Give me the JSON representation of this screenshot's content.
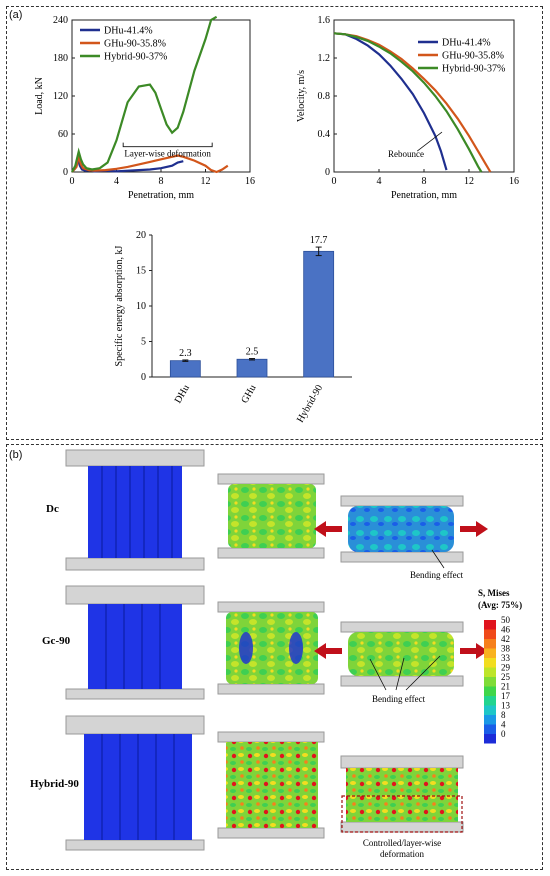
{
  "panel_a_label": "(a)",
  "panel_b_label": "(b)",
  "chart_data": [
    {
      "type": "line",
      "xlabel": "Penetration, mm",
      "ylabel": "Load, kN",
      "xlim": [
        0,
        16
      ],
      "ylim": [
        0,
        240
      ],
      "xticks": [
        "0",
        "4",
        "8",
        "12",
        "16"
      ],
      "yticks": [
        "0",
        "60",
        "120",
        "180",
        "240"
      ],
      "legend": "top-left",
      "series": [
        {
          "name": "DHu-41.4%",
          "color": "#1f2f8f",
          "x": [
            0,
            0.3,
            0.5,
            0.7,
            0.9,
            1.2,
            1.6,
            2.0,
            3.0,
            4.0,
            5.0,
            6.0,
            7.0,
            8.0,
            9.0,
            9.5,
            10.0
          ],
          "y": [
            0,
            6,
            22,
            10,
            4,
            2,
            3,
            1,
            2,
            1,
            2,
            3,
            4,
            6,
            10,
            15,
            17
          ]
        },
        {
          "name": "GHu-90-35.8%",
          "color": "#d2561b",
          "x": [
            0,
            0.4,
            0.6,
            0.8,
            1.0,
            1.5,
            2.0,
            3.0,
            4.0,
            5.0,
            6.0,
            7.0,
            8.0,
            9.0,
            9.5,
            10.0,
            11.0,
            12.0,
            12.5,
            13.0,
            13.5,
            14.0
          ],
          "y": [
            0,
            8,
            25,
            12,
            6,
            3,
            2,
            3,
            5,
            8,
            12,
            16,
            20,
            24,
            26,
            24,
            18,
            10,
            3,
            0,
            4,
            10
          ]
        },
        {
          "name": "Hybrid-90-37%",
          "color": "#3c8a26",
          "x": [
            0,
            0.3,
            0.6,
            0.8,
            1.0,
            1.3,
            1.8,
            2.5,
            3.2,
            4.0,
            5.0,
            6.0,
            7.0,
            7.5,
            8.0,
            8.5,
            9.0,
            9.5,
            10.0,
            11.0,
            12.0,
            12.5,
            13.0
          ],
          "y": [
            0,
            10,
            32,
            20,
            12,
            6,
            4,
            6,
            15,
            50,
            110,
            135,
            138,
            125,
            100,
            75,
            62,
            70,
            95,
            160,
            210,
            240,
            245
          ]
        }
      ],
      "annotations": [
        "Layer-wise deformation"
      ]
    },
    {
      "type": "line",
      "xlabel": "Penetration, mm",
      "ylabel": "Velocity, m/s",
      "xlim": [
        0,
        16
      ],
      "ylim": [
        0,
        1.6
      ],
      "xticks": [
        "0",
        "4",
        "8",
        "12",
        "16"
      ],
      "yticks": [
        "0",
        "0.4",
        "0.8",
        "1.2",
        "1.6"
      ],
      "legend": "top-right",
      "series": [
        {
          "name": "DHu-41.4%",
          "color": "#1f2f8f",
          "x": [
            0,
            1,
            2,
            3,
            4,
            5,
            6,
            7,
            8,
            9,
            9.5,
            10.0
          ],
          "y": [
            1.46,
            1.45,
            1.4,
            1.33,
            1.24,
            1.12,
            0.98,
            0.82,
            0.62,
            0.38,
            0.22,
            0.02
          ]
        },
        {
          "name": "GHu-90-35.8%",
          "color": "#d2561b",
          "x": [
            0,
            1,
            2,
            3,
            4,
            5,
            6,
            7,
            8,
            9,
            10,
            11,
            12,
            13,
            13.5,
            13.9
          ],
          "y": [
            1.46,
            1.45,
            1.43,
            1.39,
            1.34,
            1.27,
            1.19,
            1.09,
            0.98,
            0.86,
            0.72,
            0.56,
            0.38,
            0.18,
            0.08,
            0.0
          ]
        },
        {
          "name": "Hybrid-90-37%",
          "color": "#3c8a26",
          "x": [
            0,
            1,
            2,
            3,
            4,
            5,
            6,
            7,
            8,
            9,
            10,
            11,
            12,
            12.8,
            13.1
          ],
          "y": [
            1.46,
            1.45,
            1.42,
            1.38,
            1.32,
            1.25,
            1.16,
            1.06,
            0.94,
            0.8,
            0.64,
            0.45,
            0.24,
            0.06,
            0.0
          ]
        }
      ],
      "annotations": [
        "Rebounce"
      ]
    },
    {
      "type": "bar",
      "ylabel": "Specific energy absorption, kJ",
      "ylim": [
        0,
        20
      ],
      "yticks": [
        "0",
        "5",
        "10",
        "15",
        "20"
      ],
      "categories": [
        "DHu",
        "GHu",
        "Hybrid-90"
      ],
      "values": [
        2.3,
        2.5,
        17.7
      ],
      "value_labels": [
        "2.3",
        "2.5",
        "17.7"
      ],
      "errors": [
        0.1,
        0.1,
        0.6
      ],
      "color": "#4a72c4"
    }
  ],
  "panel_b": {
    "rows": [
      {
        "label": "Dc",
        "annotation": "Bending effect"
      },
      {
        "label": "Gc-90",
        "annotation": "Bending effect"
      },
      {
        "label": "Hybrid-90",
        "annotation": "Controlled/layer-wise deformation"
      }
    ],
    "legend_title": "S, Mises",
    "legend_subtitle": "(Avg: 75%)",
    "legend_values": [
      "50",
      "46",
      "42",
      "38",
      "33",
      "29",
      "25",
      "21",
      "17",
      "13",
      "8",
      "4",
      "0"
    ],
    "legend_colors": [
      "#e0141e",
      "#f04a1a",
      "#f6801c",
      "#f9b21f",
      "#f2dd20",
      "#bde52a",
      "#7fdc38",
      "#3fd64a",
      "#22d48f",
      "#1ec6c8",
      "#1a98e6",
      "#1a5ee8",
      "#1c2cd8"
    ]
  }
}
